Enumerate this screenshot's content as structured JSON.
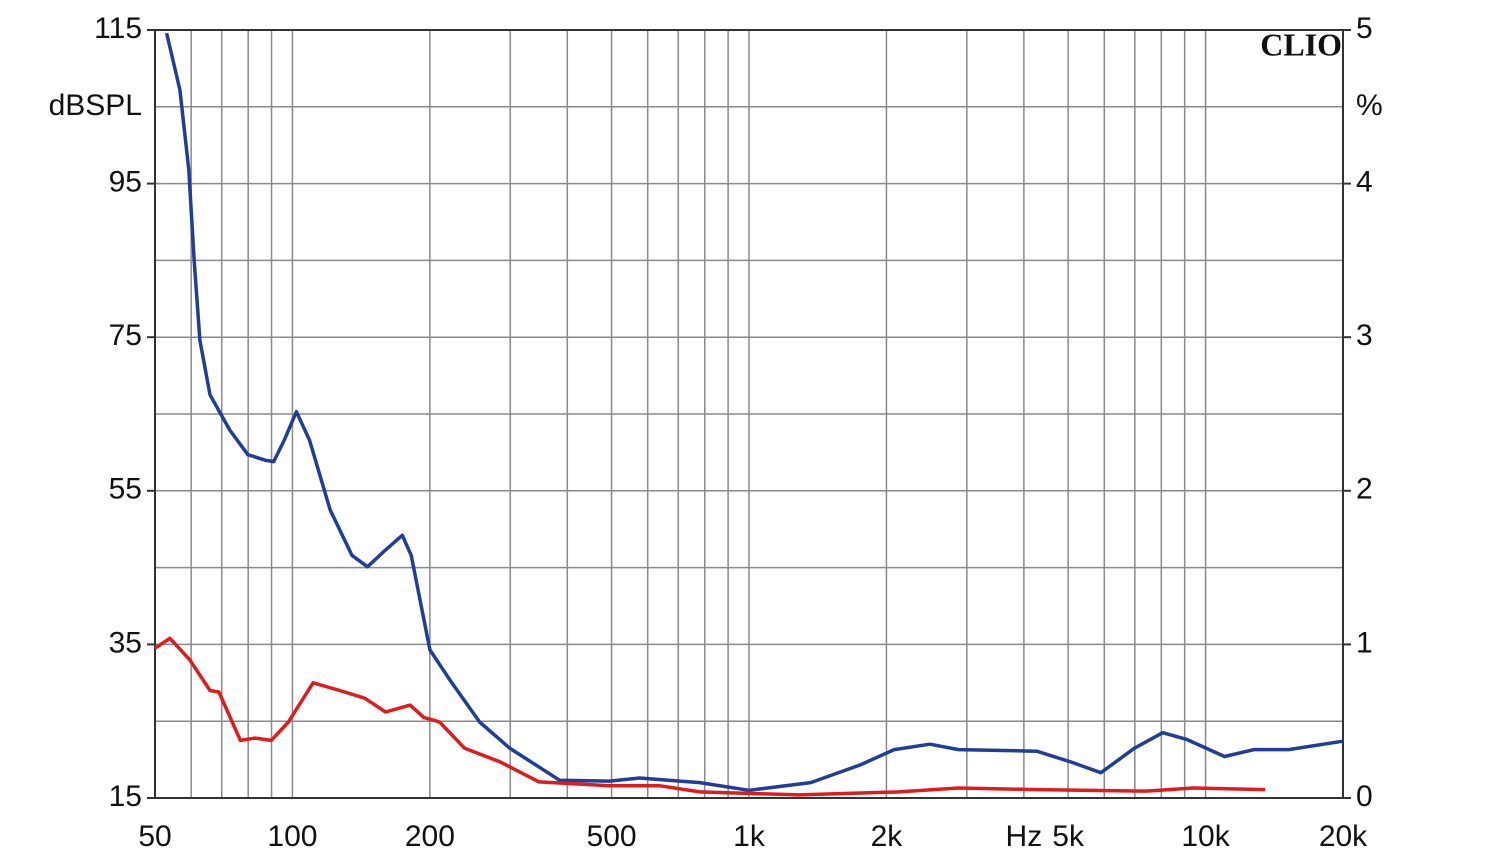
{
  "chart_data": {
    "type": "line",
    "watermark": "CLIO",
    "y_label": "dBSPL",
    "y2_label": "%",
    "x_unit_label": "Hz",
    "x_unit_at": 4000,
    "xscale": "log",
    "grid": true,
    "xlim": [
      50,
      20000
    ],
    "xticks": [
      50,
      100,
      200,
      500,
      {
        "value": 1000,
        "label": "1k"
      },
      {
        "value": 2000,
        "label": "2k"
      },
      {
        "value": 5000,
        "label": "5k"
      },
      {
        "value": 10000,
        "label": "10k"
      },
      {
        "value": 20000,
        "label": "20k"
      }
    ],
    "x_minor_ticks": [
      60,
      70,
      80,
      90,
      300,
      400,
      600,
      700,
      800,
      900,
      3000,
      4000,
      6000,
      7000,
      8000,
      9000
    ],
    "ylim": [
      15,
      115
    ],
    "yticks": [
      15,
      35,
      55,
      75,
      95,
      115
    ],
    "y_minor_ticks": [
      25,
      45,
      65,
      85,
      105
    ],
    "y2lim": [
      0,
      5
    ],
    "y2ticks": [
      0,
      1,
      2,
      3,
      4,
      5
    ],
    "series": [
      {
        "name": "blue",
        "color": "#1f3d99",
        "x": [
          53,
          56.7,
          59.3,
          60.9,
          62.7,
          66,
          72.9,
          79.9,
          87,
          91,
          96,
          102,
          109,
          121,
          135,
          146,
          160,
          174,
          182,
          200,
          221,
          257,
          299,
          385,
          495,
          575,
          780,
          1000,
          1365,
          1750,
          2080,
          2490,
          2880,
          4270,
          5065,
          5900,
          6990,
          8060,
          9110,
          11000,
          12780,
          15200,
          20000
        ],
        "values": [
          114.6,
          107.2,
          96.8,
          85.1,
          74.6,
          67.5,
          62.9,
          59.7,
          59,
          58.8,
          61.6,
          65.3,
          61.6,
          52.5,
          46.6,
          45.1,
          47.3,
          49.2,
          46.6,
          34.3,
          30.4,
          24.9,
          21.5,
          17.3,
          17.2,
          17.6,
          17,
          16,
          17,
          19.3,
          21.3,
          22,
          21.3,
          21.1,
          19.7,
          18.3,
          21.5,
          23.5,
          22.6,
          20.4,
          21.3,
          21.3,
          22.4
        ]
      },
      {
        "name": "red",
        "color": "#e01b1b",
        "x": [
          50,
          53.9,
          59.6,
          66,
          69,
          76.9,
          82.9,
          89.9,
          98,
          111,
          127,
          144,
          160,
          181,
          194,
          210,
          238,
          285,
          347,
          495,
          636,
          780,
          1285,
          2130,
          2880,
          4270,
          7400,
          9400,
          13500
        ],
        "values": [
          34.5,
          35.8,
          33,
          29,
          28.8,
          22.5,
          22.8,
          22.5,
          24.9,
          30,
          29,
          28,
          26.2,
          27.1,
          25.5,
          24.9,
          21.5,
          19.7,
          17.1,
          16.6,
          16.6,
          15.8,
          15.4,
          15.8,
          16.3,
          16.1,
          15.9,
          16.3,
          16.1
        ]
      }
    ]
  }
}
